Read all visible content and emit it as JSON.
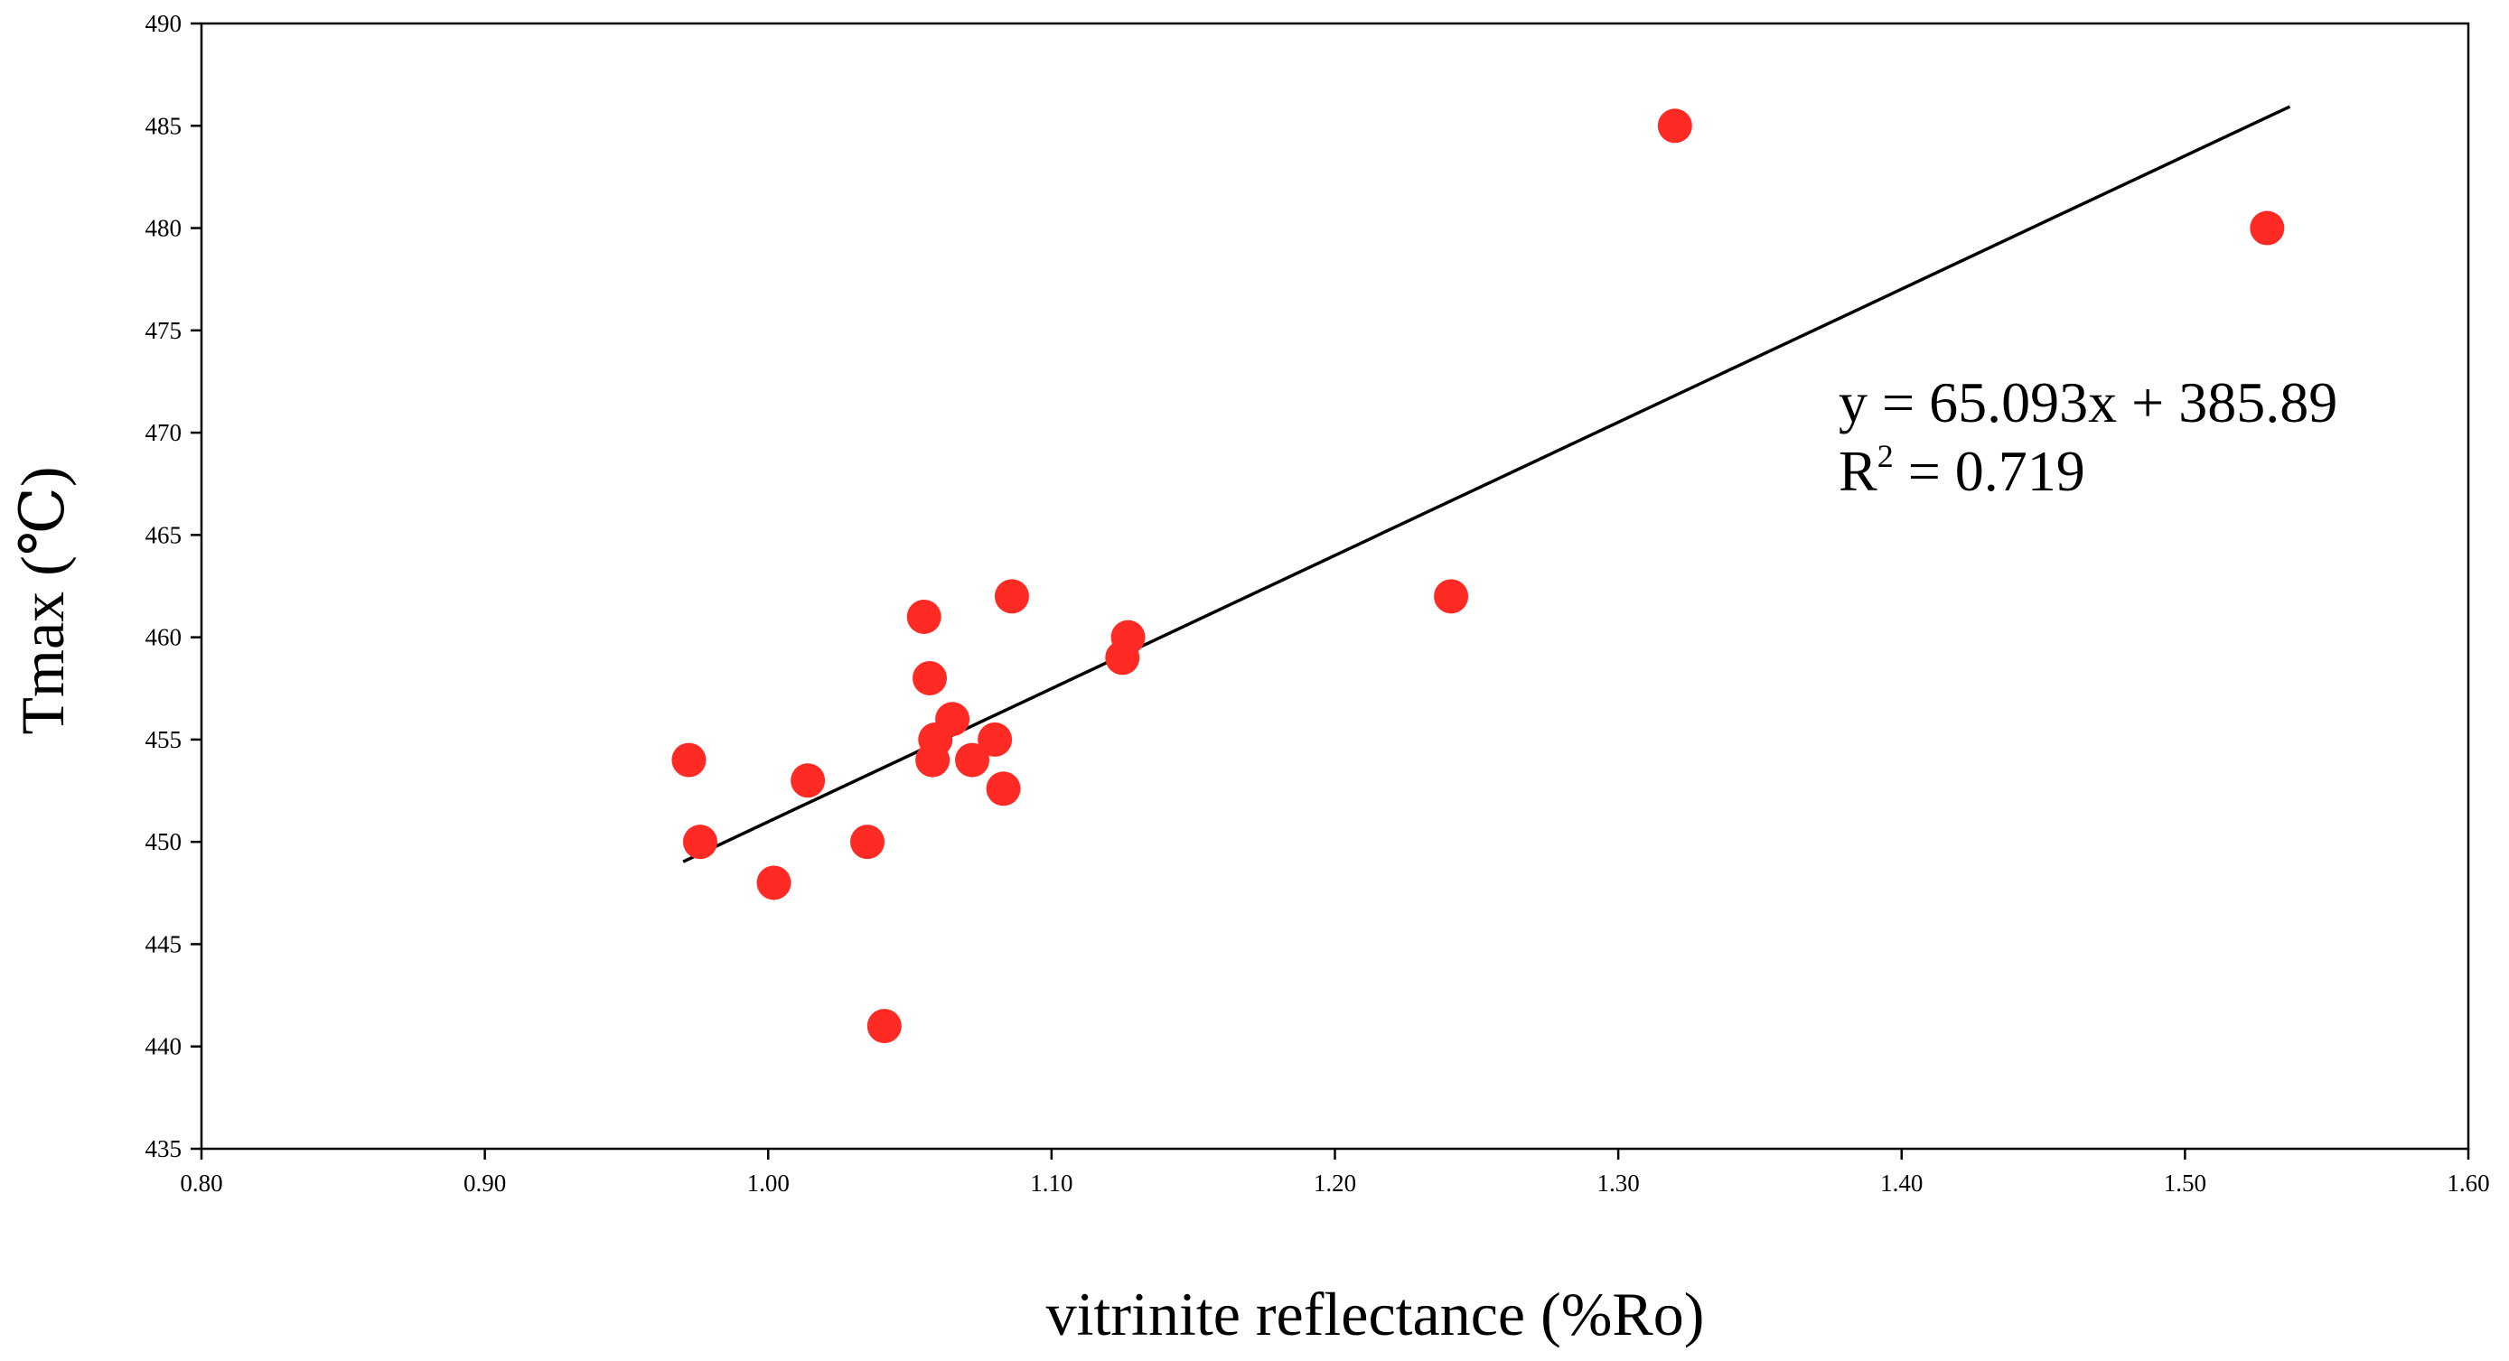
{
  "chart_data": {
    "type": "scatter",
    "title": "",
    "xlabel": "vitrinite reflectance (%Ro)",
    "ylabel": "Tmax (℃)",
    "xlim": [
      0.8,
      1.6
    ],
    "ylim": [
      435,
      490
    ],
    "x_ticks": [
      "0.80",
      "0.90",
      "1.00",
      "1.10",
      "1.20",
      "1.30",
      "1.40",
      "1.50",
      "1.60"
    ],
    "x_tick_values": [
      0.8,
      0.9,
      1.0,
      1.1,
      1.2,
      1.3,
      1.4,
      1.5,
      1.6
    ],
    "y_ticks": [
      "435",
      "440",
      "445",
      "450",
      "455",
      "460",
      "465",
      "470",
      "475",
      "480",
      "485",
      "490"
    ],
    "y_tick_values": [
      435,
      440,
      445,
      450,
      455,
      460,
      465,
      470,
      475,
      480,
      485,
      490
    ],
    "grid": false,
    "point_color": "#ff2a24",
    "line_color": "#000000",
    "points": [
      {
        "x": 0.972,
        "y": 454
      },
      {
        "x": 0.976,
        "y": 450
      },
      {
        "x": 1.002,
        "y": 448
      },
      {
        "x": 1.014,
        "y": 453
      },
      {
        "x": 1.035,
        "y": 450
      },
      {
        "x": 1.041,
        "y": 441
      },
      {
        "x": 1.055,
        "y": 461
      },
      {
        "x": 1.057,
        "y": 458
      },
      {
        "x": 1.058,
        "y": 454
      },
      {
        "x": 1.059,
        "y": 455
      },
      {
        "x": 1.065,
        "y": 456
      },
      {
        "x": 1.072,
        "y": 454
      },
      {
        "x": 1.08,
        "y": 455
      },
      {
        "x": 1.083,
        "y": 452.6
      },
      {
        "x": 1.086,
        "y": 462
      },
      {
        "x": 1.125,
        "y": 459
      },
      {
        "x": 1.127,
        "y": 460
      },
      {
        "x": 1.241,
        "y": 462
      },
      {
        "x": 1.32,
        "y": 485
      },
      {
        "x": 1.529,
        "y": 480
      }
    ],
    "trendline": {
      "slope": 65.093,
      "intercept": 385.89,
      "x_range": [
        0.97,
        1.537
      ]
    },
    "annotation": {
      "equation": "y = 65.093x + 385.89",
      "r2_prefix": "R",
      "r2_superscript": "2",
      "r2_value": " = 0.719"
    }
  }
}
